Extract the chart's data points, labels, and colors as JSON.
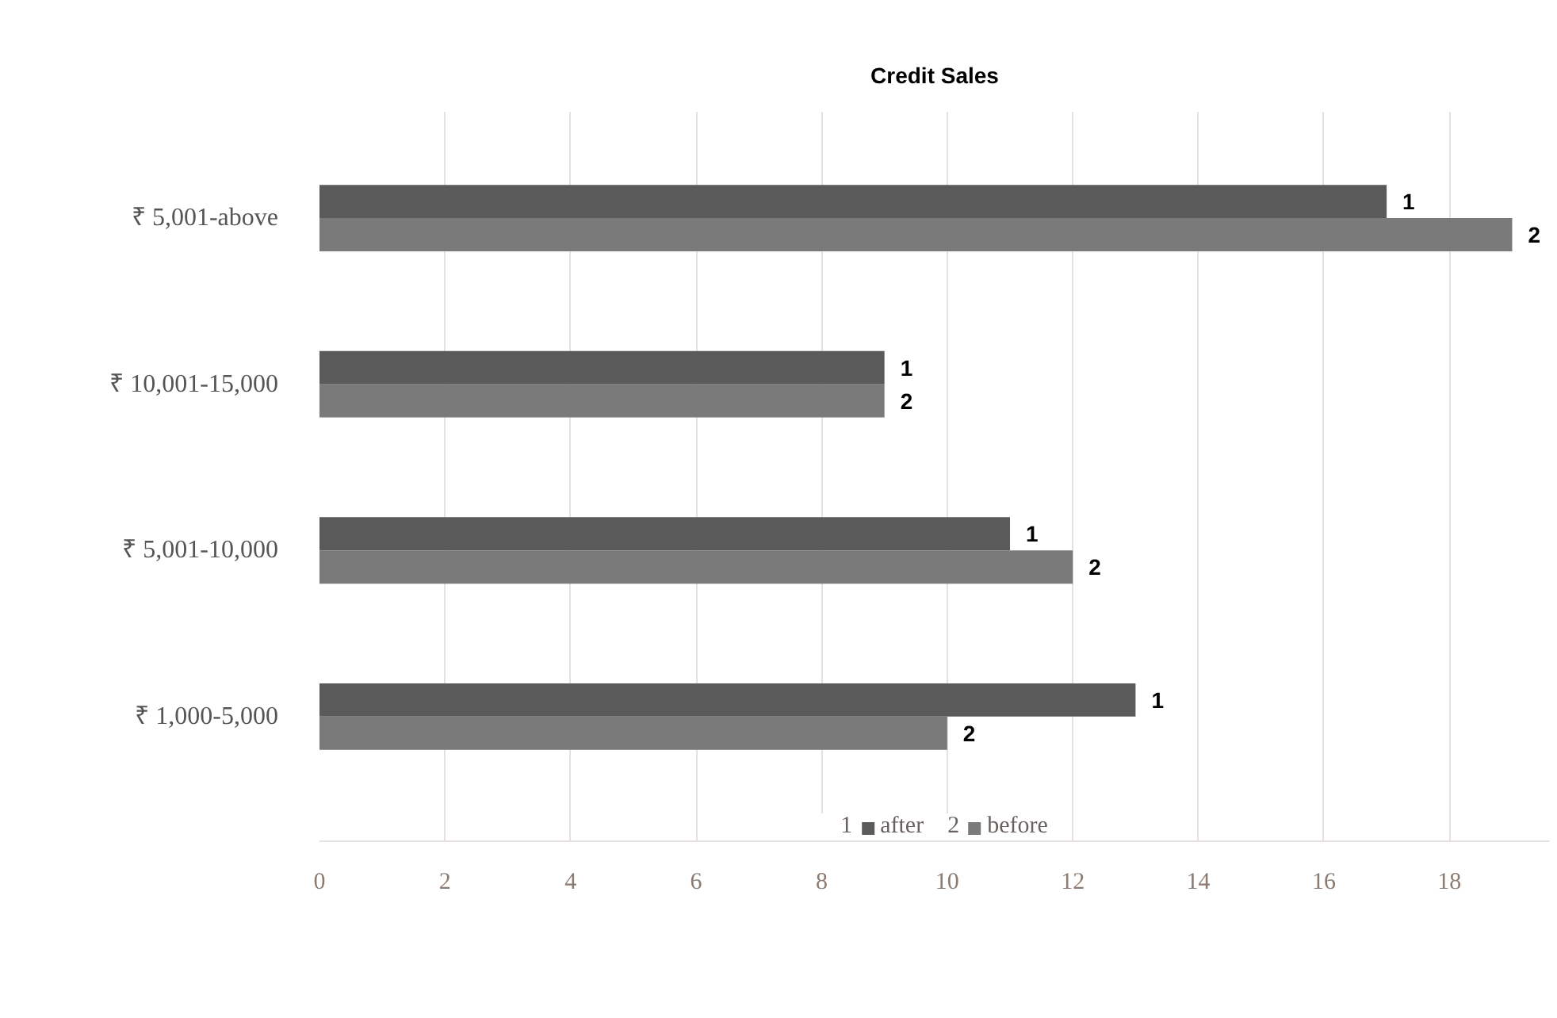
{
  "chart_data": {
    "type": "bar",
    "orientation": "horizontal",
    "title": "Credit Sales",
    "categories": [
      "₹ 5,001-above",
      "₹ 10,001-15,000",
      "₹ 5,001-10,000",
      "₹ 1,000-5,000"
    ],
    "series": [
      {
        "name": "after",
        "color": "#5a5a5a",
        "values": [
          17,
          9,
          11,
          13
        ]
      },
      {
        "name": "before",
        "color": "#7a7a7a",
        "values": [
          19,
          9,
          12,
          10
        ]
      }
    ],
    "annotations": [
      {
        "text": "1",
        "x": 17,
        "y": "₹ 5,001-above"
      },
      {
        "text": "1",
        "x": 9,
        "y": "₹ 10,001-15,000"
      },
      {
        "text": "1",
        "x": 11,
        "y": "₹ 5,001-10,000"
      },
      {
        "text": "1",
        "x": 13,
        "y": "₹ 1,000-5,000"
      },
      {
        "text": "2",
        "x": 19,
        "y": "₹ 5,001-above"
      },
      {
        "text": "2",
        "x": 9,
        "y": "₹ 10,001-15,000"
      },
      {
        "text": "2",
        "x": 12,
        "y": "₹ 5,001-10,000"
      },
      {
        "text": "2",
        "x": 10,
        "y": "₹ 1,000-5,000"
      }
    ],
    "xlim": [
      0,
      19.6
    ],
    "xticks": [
      0,
      2,
      4,
      6,
      8,
      10,
      12,
      14,
      16,
      18
    ],
    "grid": "x",
    "legend": "bottom"
  }
}
